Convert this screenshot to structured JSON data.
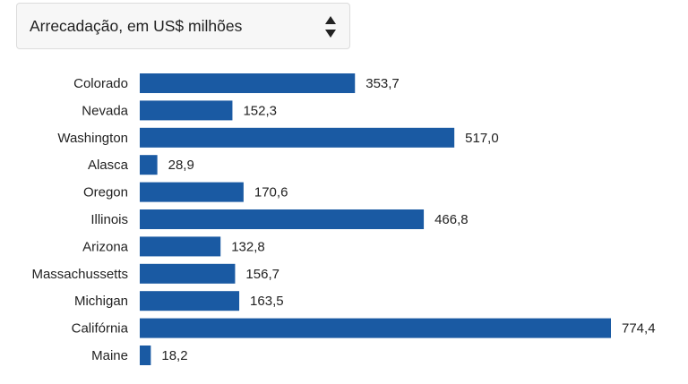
{
  "selector": {
    "selected_value": "Arrecadação, em US$ milhões"
  },
  "colors": {
    "bar": "#1a5aa3",
    "text": "#222222"
  },
  "chart_data": {
    "type": "bar",
    "orientation": "horizontal",
    "categories": [
      "Colorado",
      "Nevada",
      "Washington",
      "Alasca",
      "Oregon",
      "Illinois",
      "Arizona",
      "Massachussetts",
      "Michigan",
      "Califórnia",
      "Maine"
    ],
    "values": [
      353.7,
      152.3,
      517.0,
      28.9,
      170.6,
      466.8,
      132.8,
      156.7,
      163.5,
      774.4,
      18.2
    ],
    "value_labels": [
      "353,7",
      "152,3",
      "517,0",
      "28,9",
      "170,6",
      "466,8",
      "132,8",
      "156,7",
      "163,5",
      "774,4",
      "18,2"
    ],
    "xlim": [
      0,
      774.4
    ],
    "grid": false,
    "legend": "none"
  }
}
